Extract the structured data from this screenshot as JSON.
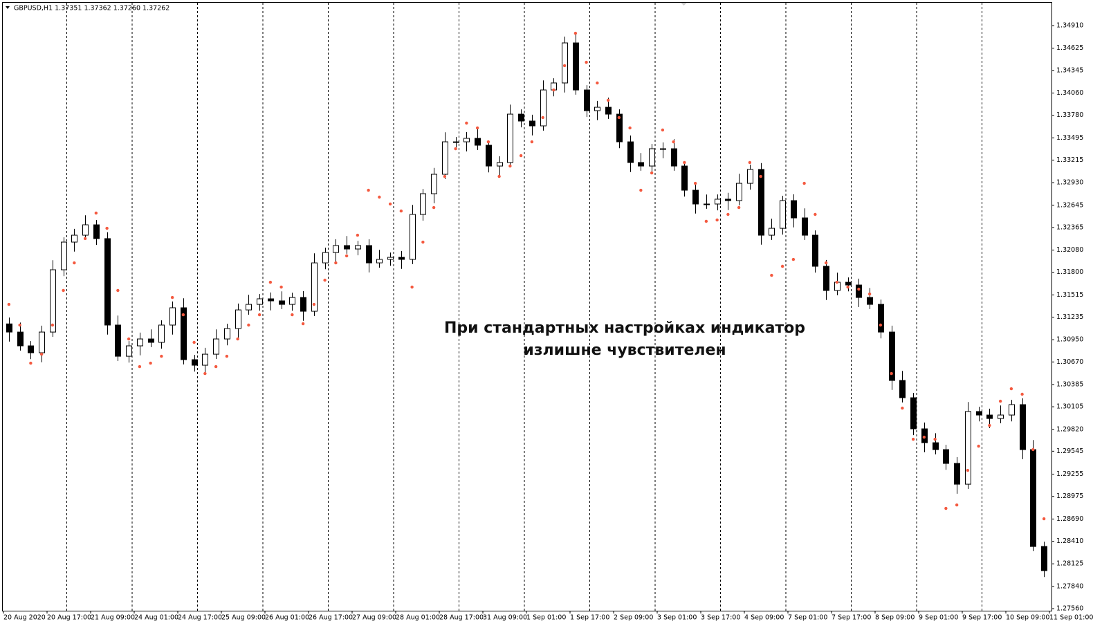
{
  "chart_data": {
    "type": "candlestick",
    "title": "GBPUSD,H1  1.37351 1.37362 1.37260 1.37262",
    "annotation": [
      "При стандартных настройках индикатор",
      "излишне чувствителен"
    ],
    "color": "#000000",
    "open": [
      1.3115,
      1.31047,
      1.30873,
      1.30786,
      1.31047,
      1.31832,
      1.32181,
      1.32268,
      1.32399,
      1.32225,
      1.31135,
      1.30742,
      1.30873,
      1.3096,
      1.30917,
      1.31135,
      1.31353,
      1.30699,
      1.30629,
      1.30768,
      1.3096,
      1.31091,
      1.31326,
      1.31396,
      1.31466,
      1.3144,
      1.31396,
      1.31483,
      1.31309,
      1.31919,
      1.3205,
      1.32137,
      1.32094,
      1.32137,
      1.31919,
      1.31963,
      1.31989,
      1.31963,
      1.3253,
      1.32791,
      1.33036,
      1.33445,
      1.33445,
      1.33489,
      1.33402,
      1.3314,
      1.33184,
      1.33794,
      1.33707,
      1.33646,
      1.34099,
      1.34187,
      1.34692,
      1.34099,
      1.33838,
      1.33881,
      1.33794,
      1.33445,
      1.33184,
      1.3314,
      1.33358,
      1.33358,
      1.3314,
      1.32835,
      1.32661,
      1.32661,
      1.32722,
      1.32704,
      1.32922,
      1.33097,
      1.32268,
      1.32355,
      1.32704,
      1.32486,
      1.32268,
      1.31876,
      1.31571,
      1.31675,
      1.3164,
      1.31483,
      1.31396,
      1.31047,
      1.30437,
      1.30219,
      1.29827,
      1.29652,
      1.29565,
      1.29391,
      1.29129,
      1.30045,
      1.30001,
      1.29957,
      1.30001,
      1.30132,
      1.29565,
      1.28344
    ],
    "high": [
      1.3123,
      1.31167,
      1.30933,
      1.31127,
      1.31952,
      1.32241,
      1.32348,
      1.32519,
      1.32459,
      1.32305,
      1.31255,
      1.30933,
      1.3104,
      1.3108,
      1.31195,
      1.31433,
      1.31473,
      1.30759,
      1.30848,
      1.3108,
      1.31151,
      1.31406,
      1.31516,
      1.31526,
      1.31546,
      1.3156,
      1.31543,
      1.31563,
      1.32039,
      1.3211,
      1.32217,
      1.32257,
      1.32197,
      1.32217,
      1.32083,
      1.32049,
      1.32069,
      1.3265,
      1.32851,
      1.33116,
      1.33565,
      1.33505,
      1.33569,
      1.33609,
      1.33462,
      1.33264,
      1.33914,
      1.33854,
      1.33787,
      1.34219,
      1.34247,
      1.34772,
      1.34812,
      1.34159,
      1.33961,
      1.34001,
      1.33854,
      1.33525,
      1.33304,
      1.33418,
      1.33438,
      1.33478,
      1.332,
      1.32915,
      1.32781,
      1.32782,
      1.32802,
      1.33042,
      1.33157,
      1.33177,
      1.32475,
      1.32764,
      1.32784,
      1.32606,
      1.32328,
      1.31956,
      1.31795,
      1.31735,
      1.3172,
      1.31603,
      1.31456,
      1.31127,
      1.30557,
      1.30279,
      1.29907,
      1.29772,
      1.29625,
      1.29471,
      1.30165,
      1.30105,
      1.30081,
      1.30121,
      1.30192,
      1.30212,
      1.29685,
      1.28404
    ],
    "low": [
      1.30927,
      1.30813,
      1.30706,
      1.30666,
      1.30987,
      1.31752,
      1.32061,
      1.32208,
      1.32145,
      1.31015,
      1.30682,
      1.30662,
      1.30753,
      1.30857,
      1.30837,
      1.31015,
      1.30639,
      1.30549,
      1.30509,
      1.30708,
      1.3088,
      1.30971,
      1.31266,
      1.31316,
      1.3132,
      1.31336,
      1.31316,
      1.31189,
      1.31249,
      1.31839,
      1.3193,
      1.32034,
      1.32014,
      1.31799,
      1.31859,
      1.31883,
      1.31843,
      1.31903,
      1.3245,
      1.32671,
      1.32976,
      1.33365,
      1.33325,
      1.33342,
      1.3306,
      1.3302,
      1.33124,
      1.33627,
      1.33526,
      1.33586,
      1.34019,
      1.34067,
      1.34039,
      1.33758,
      1.33718,
      1.33734,
      1.33365,
      1.33064,
      1.3308,
      1.3306,
      1.33238,
      1.3308,
      1.32755,
      1.32541,
      1.32601,
      1.32581,
      1.32584,
      1.32644,
      1.32842,
      1.32148,
      1.32208,
      1.32275,
      1.32366,
      1.32208,
      1.31796,
      1.31451,
      1.31511,
      1.3156,
      1.31363,
      1.31336,
      1.30967,
      1.30317,
      1.30159,
      1.29747,
      1.29532,
      1.29505,
      1.29311,
      1.29009,
      1.29069,
      1.29921,
      1.29837,
      1.29897,
      1.29921,
      1.29445,
      1.28284,
      1.27959
    ],
    "close": [
      1.31047,
      1.30873,
      1.30786,
      1.31047,
      1.31832,
      1.32181,
      1.32268,
      1.32399,
      1.32225,
      1.31135,
      1.30742,
      1.30873,
      1.3096,
      1.30917,
      1.31135,
      1.31353,
      1.30699,
      1.30629,
      1.30768,
      1.3096,
      1.31091,
      1.31326,
      1.31396,
      1.31466,
      1.3144,
      1.31396,
      1.31483,
      1.31309,
      1.31919,
      1.3205,
      1.32137,
      1.32094,
      1.32137,
      1.31919,
      1.31963,
      1.31989,
      1.31963,
      1.3253,
      1.32791,
      1.33036,
      1.33445,
      1.33445,
      1.33489,
      1.33402,
      1.3314,
      1.33184,
      1.33794,
      1.33707,
      1.33646,
      1.34099,
      1.34187,
      1.34692,
      1.34099,
      1.33838,
      1.33881,
      1.33794,
      1.33445,
      1.33184,
      1.3314,
      1.33358,
      1.33358,
      1.3314,
      1.32835,
      1.32661,
      1.32661,
      1.32722,
      1.32704,
      1.32922,
      1.33097,
      1.32268,
      1.32355,
      1.32704,
      1.32486,
      1.32268,
      1.31876,
      1.31571,
      1.31675,
      1.3164,
      1.31483,
      1.31396,
      1.31047,
      1.30437,
      1.30219,
      1.29827,
      1.29652,
      1.29565,
      1.29391,
      1.29129,
      1.30045,
      1.30001,
      1.29957,
      1.30001,
      1.30132,
      1.29565,
      1.28344,
      1.28039
    ],
    "sar": {
      "color": "#f4593f",
      "values": [
        1.31396,
        1.31135,
        1.30655,
        1.30768,
        1.31135,
        1.31571,
        1.31919,
        1.32225,
        1.32547,
        1.32355,
        1.31571,
        1.3096,
        1.30611,
        1.30655,
        1.30742,
        1.31483,
        1.31265,
        1.30917,
        1.30524,
        1.30611,
        1.30742,
        1.3096,
        1.31135,
        1.31265,
        1.31675,
        1.31614,
        1.31265,
        1.31152,
        1.31396,
        1.31701,
        1.31919,
        1.32007,
        1.32268,
        1.32835,
        1.32748,
        1.32661,
        1.32573,
        1.31614,
        1.32181,
        1.32617,
        1.33009,
        1.33358,
        1.33681,
        1.3362,
        1.33445,
        1.33009,
        1.3314,
        1.33271,
        1.33445,
        1.33751,
        1.34099,
        1.34405,
        1.34814,
        1.34448,
        1.34187,
        1.33969,
        1.33751,
        1.3362,
        1.32835,
        1.33053,
        1.33594,
        1.33445,
        1.33184,
        1.32922,
        1.32443,
        1.3246,
        1.3253,
        1.32617,
        1.33184,
        1.33009,
        1.31762,
        1.31876,
        1.31963,
        1.32922,
        1.3253,
        1.31919,
        1.31675,
        1.31614,
        1.31588,
        1.31527,
        1.31135,
        1.30524,
        1.30088,
        1.29696,
        1.29722,
        1.29696,
        1.28824,
        1.28867,
        1.29303,
        1.29609,
        1.2987,
        1.30175,
        1.30332,
        1.30263,
        1.29565,
        1.28693
      ]
    },
    "ylim": [
      1.27534,
      1.35198
    ],
    "yticks": [
      {
        "value": 1.3491,
        "label": "1.34910"
      },
      1.34625,
      1.34345,
      {
        "value": 1.3406,
        "label": "1.34060"
      },
      {
        "value": 1.3378,
        "label": "1.33780"
      },
      1.33495,
      1.33215,
      {
        "value": 1.3293,
        "label": "1.32930"
      },
      1.32645,
      1.32365,
      {
        "value": 1.3208,
        "label": "1.32080"
      },
      {
        "value": 1.318,
        "label": "1.31800"
      },
      1.31515,
      1.31235,
      {
        "value": 1.3095,
        "label": "1.30950"
      },
      {
        "value": 1.3067,
        "label": "1.30670"
      },
      1.30385,
      1.30105,
      {
        "value": 1.2982,
        "label": "1.29820"
      },
      1.29545,
      1.29255,
      1.28975,
      {
        "value": 1.2869,
        "label": "1.28690"
      },
      {
        "value": 1.2841,
        "label": "1.28410"
      },
      1.28125,
      {
        "value": 1.2784,
        "label": "1.27840"
      },
      {
        "value": 1.2756,
        "label": "1.27560"
      }
    ],
    "xticks": [
      {
        "value": 0,
        "label": "20 Aug 2020"
      },
      {
        "value": 4,
        "label": "20 Aug 17:00"
      },
      {
        "value": 8,
        "label": "21 Aug 09:00"
      },
      {
        "value": 12,
        "label": "24 Aug 01:00"
      },
      {
        "value": 16,
        "label": "24 Aug 17:00"
      },
      {
        "value": 20,
        "label": "25 Aug 09:00"
      },
      {
        "value": 24,
        "label": "26 Aug 01:00"
      },
      {
        "value": 28,
        "label": "26 Aug 17:00"
      },
      {
        "value": 32,
        "label": "27 Aug 09:00"
      },
      {
        "value": 36,
        "label": "28 Aug 01:00"
      },
      {
        "value": 40,
        "label": "28 Aug 17:00"
      },
      {
        "value": 44,
        "label": "31 Aug 09:00"
      },
      {
        "value": 48,
        "label": "1 Sep 01:00"
      },
      {
        "value": 52,
        "label": "1 Sep 17:00"
      },
      {
        "value": 56,
        "label": "2 Sep 09:00"
      },
      {
        "value": 60,
        "label": "3 Sep 01:00"
      },
      {
        "value": 64,
        "label": "3 Sep 17:00"
      },
      {
        "value": 68,
        "label": "4 Sep 09:00"
      },
      {
        "value": 72,
        "label": "7 Sep 01:00"
      },
      {
        "value": 76,
        "label": "7 Sep 17:00"
      },
      {
        "value": 80,
        "label": "8 Sep 09:00"
      },
      {
        "value": 84,
        "label": "9 Sep 01:00"
      },
      {
        "value": 88,
        "label": "9 Sep 17:00"
      },
      {
        "value": 92,
        "label": "10 Sep 09:00"
      },
      {
        "value": 96,
        "label": "11 Sep 01:00"
      }
    ]
  }
}
